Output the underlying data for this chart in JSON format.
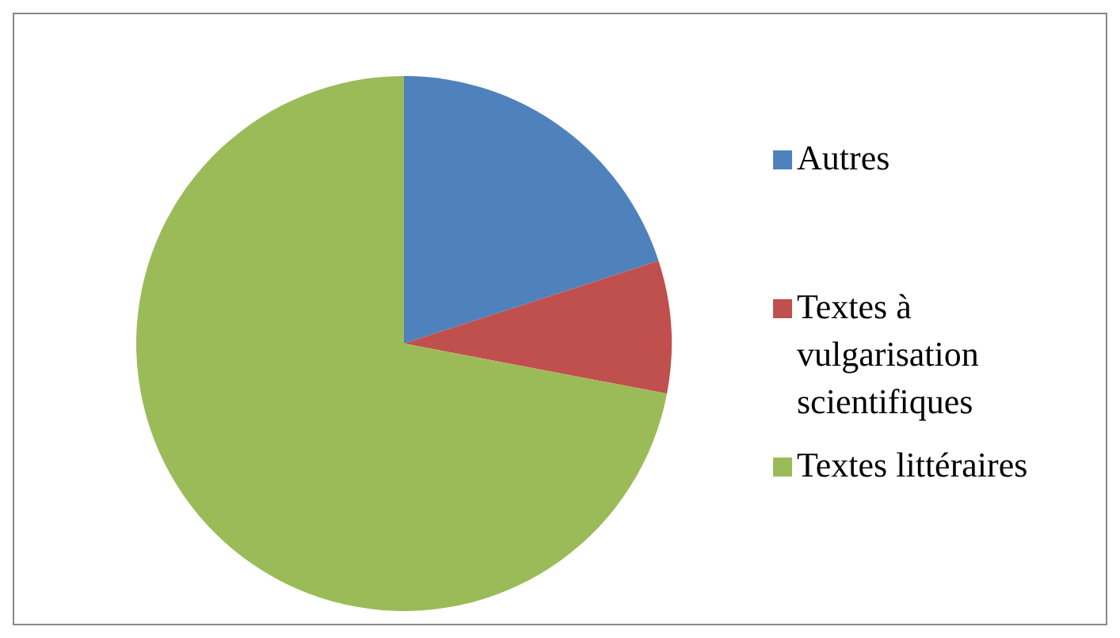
{
  "chart_data": {
    "type": "pie",
    "categories": [
      "Autres",
      "Textes à vulgarisation scientifiques",
      "Textes littéraires"
    ],
    "values": [
      20,
      8,
      72
    ],
    "colors": [
      "#4f81bd",
      "#c0504d",
      "#9bbb59"
    ],
    "legend": "right"
  }
}
